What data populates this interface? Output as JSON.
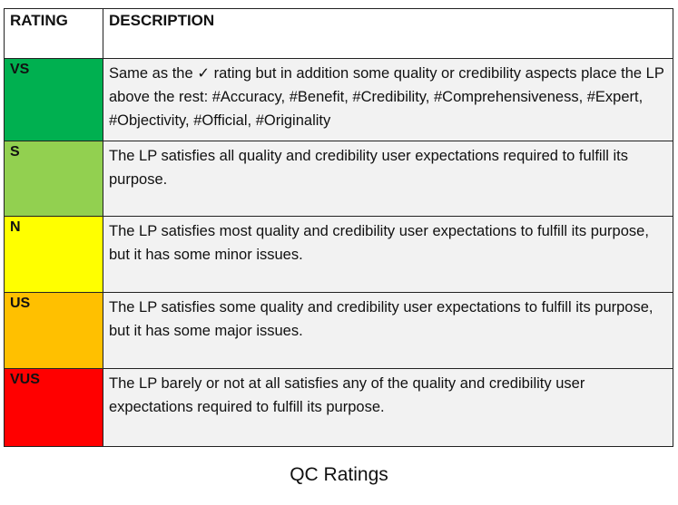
{
  "table": {
    "headers": [
      "RATING",
      "DESCRIPTION"
    ],
    "rows": [
      {
        "rating": "VS",
        "color": "#00b050",
        "description": "Same as the ✓ rating but in addition some quality or credibility aspects place the LP above the rest: #Accuracy, #Benefit, #Credibility, #Comprehensiveness, #Expert, #Objectivity, #Official, #Originality"
      },
      {
        "rating": "S",
        "color": "#92d050",
        "description": "The LP satisfies all quality and credibility user expectations required to fulfill its purpose."
      },
      {
        "rating": "N",
        "color": "#ffff00",
        "description": "The LP satisfies most quality and credibility user expectations to fulfill its purpose, but it has some minor issues."
      },
      {
        "rating": "US",
        "color": "#ffc000",
        "description": "The LP satisfies some quality and credibility user expectations to fulfill its purpose, but it has some major issues."
      },
      {
        "rating": "VUS",
        "color": "#ff0000",
        "description": "The LP barely or not at all satisfies any of the quality and credibility user expectations required to fulfill its purpose."
      }
    ]
  },
  "caption": "QC Ratings"
}
